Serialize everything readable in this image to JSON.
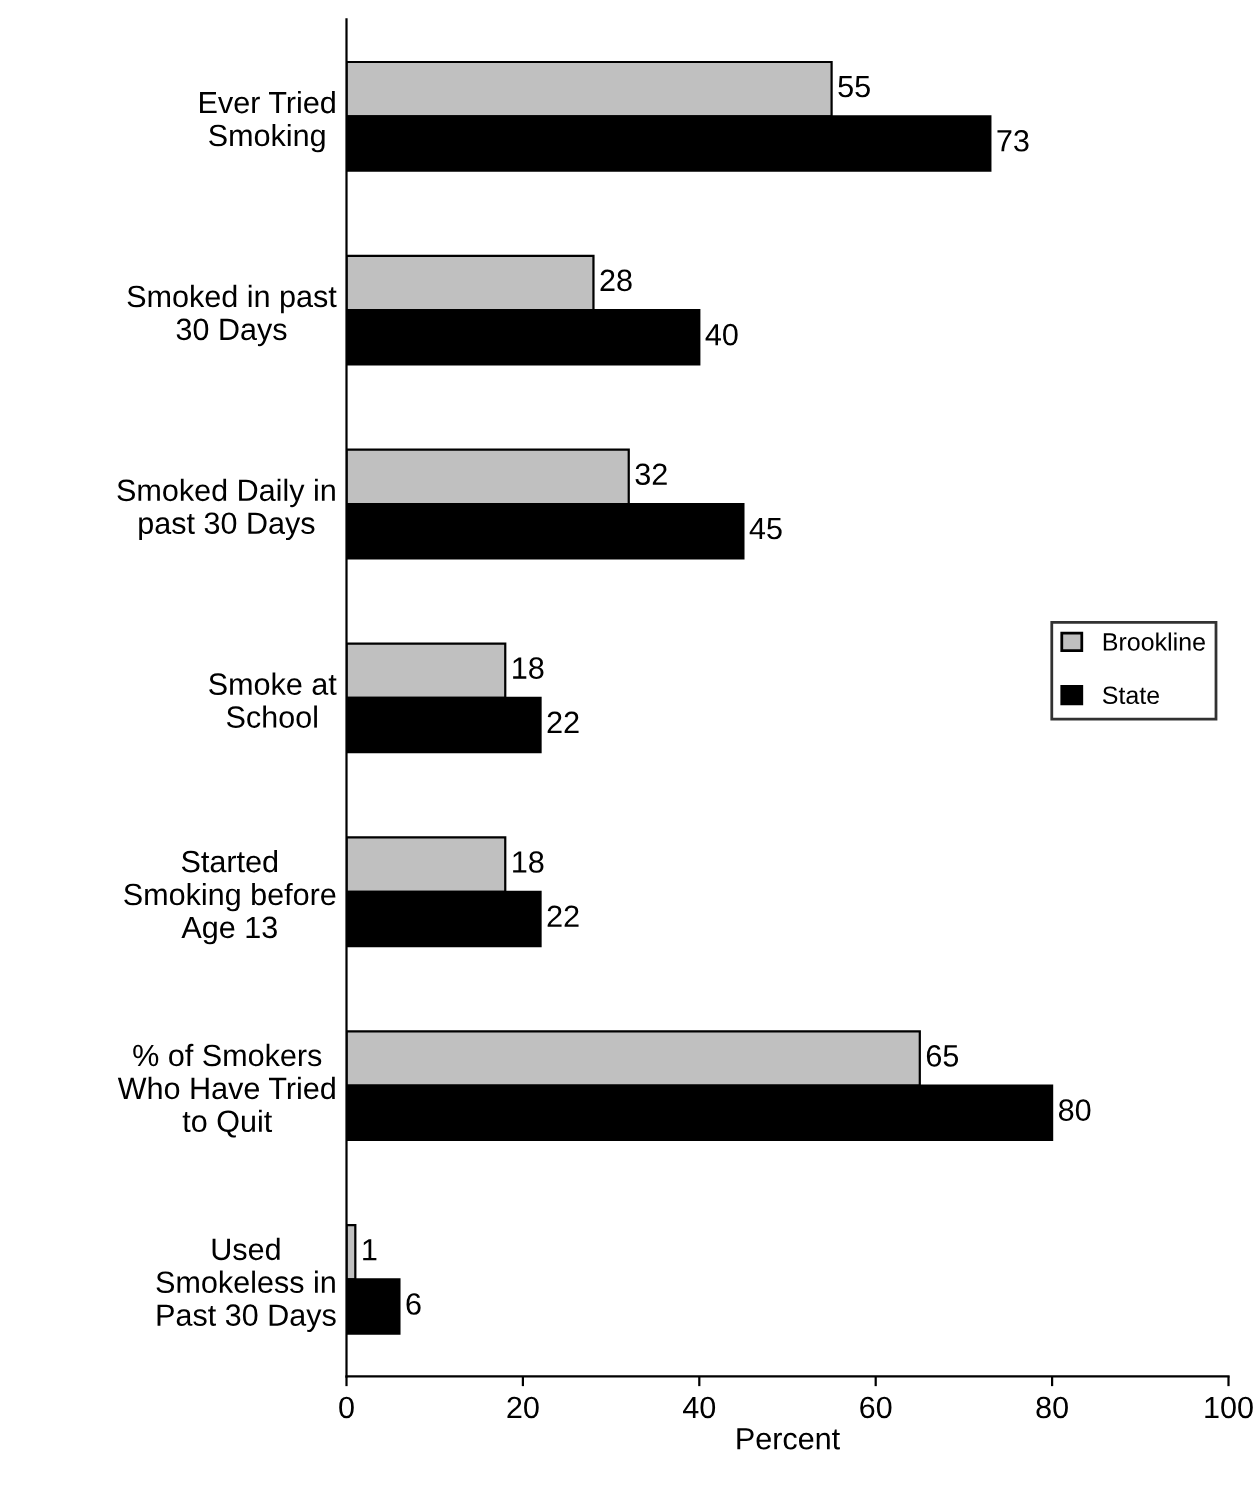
{
  "chart_data": {
    "type": "bar",
    "orientation": "horizontal",
    "xlabel": "Percent",
    "categories": [
      "Ever Tried\nSmoking",
      "Smoked in past\n30 Days",
      "Smoked Daily in\npast 30 Days",
      "Smoke at\nSchool",
      "Started\nSmoking before\nAge 13",
      "% of Smokers\nWho Have Tried\nto Quit",
      "Used\nSmokeless in\nPast 30 Days"
    ],
    "series": [
      {
        "name": "Brookline",
        "color": "#c0c0c0",
        "values": [
          55,
          28,
          32,
          18,
          18,
          65,
          1
        ]
      },
      {
        "name": "State",
        "color": "#000000",
        "values": [
          73,
          40,
          45,
          22,
          22,
          80,
          6
        ]
      }
    ],
    "xlim": [
      0,
      100
    ],
    "xticks": [
      0,
      20,
      40,
      60,
      80,
      100
    ],
    "data_labels": true,
    "legend": "right",
    "grid": false
  }
}
